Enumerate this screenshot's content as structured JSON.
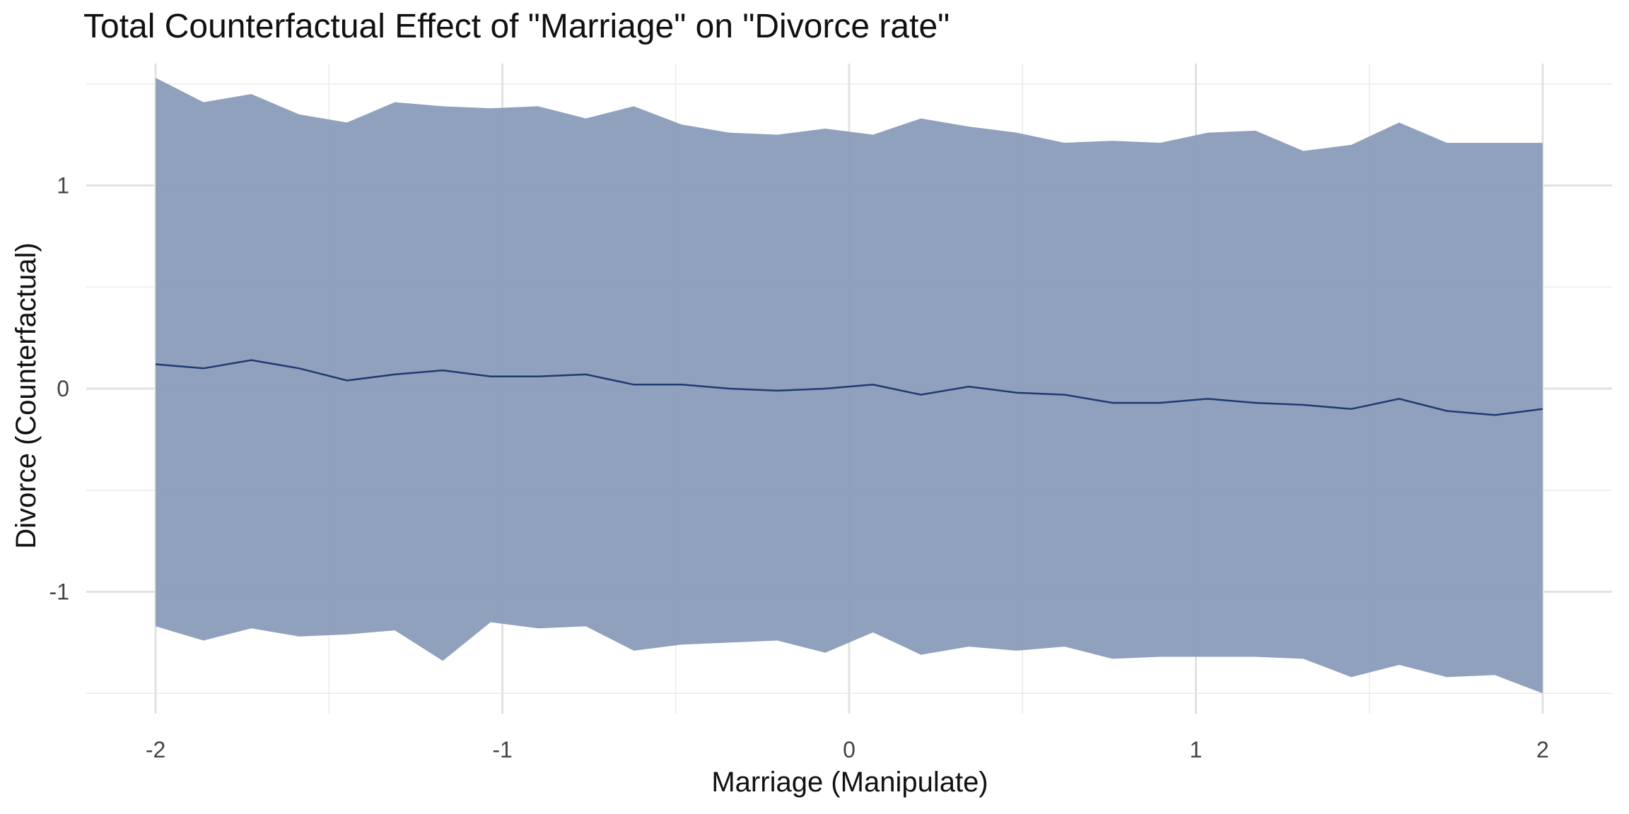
{
  "chart_data": {
    "type": "area",
    "title": "Total Counterfactual Effect of \"Marriage\" on \"Divorce rate\"",
    "xlabel": "Marriage (Manipulate)",
    "ylabel": "Divorce (Counterfactual)",
    "xlim": [
      -2.2,
      2.2
    ],
    "ylim": [
      -1.6,
      1.6
    ],
    "grid": true,
    "legend": "none",
    "x_ticks": [
      -2,
      -1,
      0,
      1,
      2
    ],
    "x_tick_labels": [
      "-2",
      "-1",
      "0",
      "1",
      "2"
    ],
    "y_ticks": [
      -1,
      0,
      1
    ],
    "y_tick_labels": [
      "-1",
      "0",
      "1"
    ],
    "x": [
      -2.0,
      -1.8,
      -1.6,
      -1.4,
      -1.2,
      -1.0,
      -0.8,
      -0.6,
      -0.4,
      -0.2,
      0.0,
      0.2,
      0.4,
      0.6,
      0.8,
      1.0,
      1.2,
      1.4,
      1.6,
      1.8,
      2.0
    ],
    "series": [
      {
        "role": "interval",
        "color": "#8a9cb9",
        "upper": [
          1.53,
          1.41,
          1.45,
          1.35,
          1.31,
          1.41,
          1.39,
          1.38,
          1.39,
          1.33,
          1.39,
          1.3,
          1.26,
          1.25,
          1.28,
          1.25,
          1.33,
          1.29,
          1.26,
          1.21,
          1.22,
          1.21,
          1.26,
          1.27,
          1.17,
          1.2,
          1.31,
          1.21,
          1.21,
          1.21
        ],
        "lower": [
          -1.17,
          -1.24,
          -1.18,
          -1.22,
          -1.21,
          -1.19,
          -1.34,
          -1.15,
          -1.18,
          -1.17,
          -1.29,
          -1.26,
          -1.25,
          -1.24,
          -1.3,
          -1.2,
          -1.31,
          -1.27,
          -1.29,
          -1.27,
          -1.33,
          -1.32,
          -1.32,
          -1.32,
          -1.33,
          -1.42,
          -1.36,
          -1.42,
          -1.41,
          -1.5
        ],
        "x": [
          -2.0,
          -1.862,
          -1.724,
          -1.586,
          -1.448,
          -1.31,
          -1.172,
          -1.034,
          -0.897,
          -0.759,
          -0.621,
          -0.483,
          -0.345,
          -0.207,
          -0.069,
          0.069,
          0.207,
          0.345,
          0.483,
          0.621,
          0.759,
          0.897,
          1.034,
          1.172,
          1.31,
          1.448,
          1.586,
          1.724,
          1.862,
          2.0
        ]
      },
      {
        "role": "mean",
        "color": "#1f3a70",
        "x": [
          -2.0,
          -1.862,
          -1.724,
          -1.586,
          -1.448,
          -1.31,
          -1.172,
          -1.034,
          -0.897,
          -0.759,
          -0.621,
          -0.483,
          -0.345,
          -0.207,
          -0.069,
          0.069,
          0.207,
          0.345,
          0.483,
          0.621,
          0.759,
          0.897,
          1.034,
          1.172,
          1.31,
          1.448,
          1.586,
          1.724,
          1.862,
          2.0
        ],
        "values": [
          0.12,
          0.1,
          0.14,
          0.1,
          0.04,
          0.07,
          0.09,
          0.06,
          0.06,
          0.07,
          0.02,
          0.02,
          0.0,
          -0.01,
          0.0,
          0.02,
          -0.03,
          0.01,
          -0.02,
          -0.03,
          -0.07,
          -0.07,
          -0.05,
          -0.07,
          -0.08,
          -0.1,
          -0.05,
          -0.11,
          -0.13,
          -0.1
        ]
      }
    ]
  }
}
